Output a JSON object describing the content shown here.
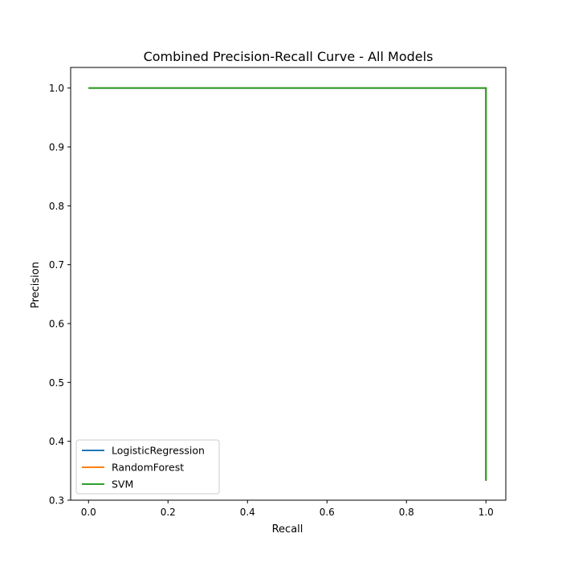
{
  "chart_data": {
    "type": "line",
    "title": "Combined Precision-Recall Curve - All Models",
    "xlabel": "Recall",
    "ylabel": "Precision",
    "xlim": [
      -0.045,
      1.05
    ],
    "ylim": [
      0.3,
      1.035
    ],
    "xticks": [
      0.0,
      0.2,
      0.4,
      0.6,
      0.8,
      1.0
    ],
    "xtick_labels": [
      "0.0",
      "0.2",
      "0.4",
      "0.6",
      "0.8",
      "1.0"
    ],
    "yticks": [
      0.3,
      0.4,
      0.5,
      0.6,
      0.7,
      0.8,
      0.9,
      1.0
    ],
    "ytick_labels": [
      "0.3",
      "0.4",
      "0.5",
      "0.6",
      "0.7",
      "0.8",
      "0.9",
      "1.0"
    ],
    "grid": false,
    "legend_position": "lower-left",
    "series": [
      {
        "name": "LogisticRegression",
        "color": "#1f77b4",
        "x": [
          0.0,
          1.0,
          1.0
        ],
        "y": [
          1.0,
          1.0,
          0.333
        ]
      },
      {
        "name": "RandomForest",
        "color": "#ff7f0e",
        "x": [
          0.0,
          1.0,
          1.0
        ],
        "y": [
          1.0,
          1.0,
          0.333
        ]
      },
      {
        "name": "SVM",
        "color": "#2ca02c",
        "x": [
          0.0,
          1.0,
          1.0
        ],
        "y": [
          1.0,
          1.0,
          0.333
        ]
      }
    ]
  }
}
